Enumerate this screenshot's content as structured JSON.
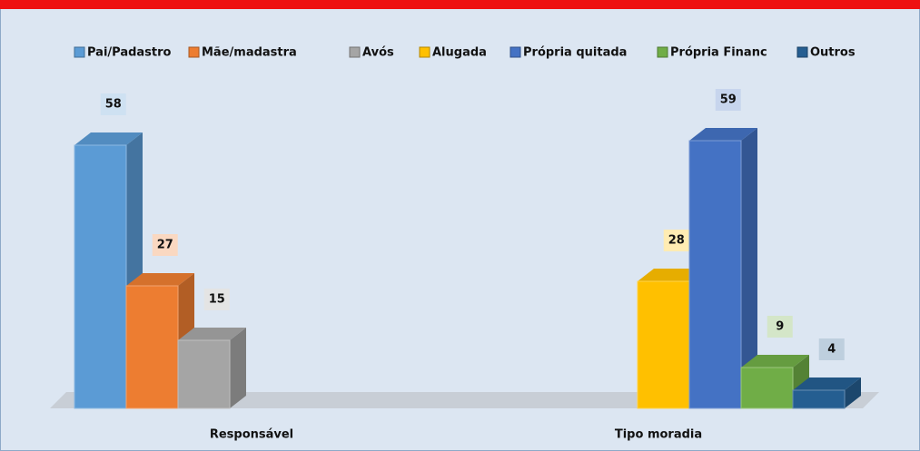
{
  "chart_data": {
    "type": "bar3d",
    "categories": [
      "Responsável",
      "Tipo moradia"
    ],
    "series": [
      {
        "name": "Pai/Padastro",
        "color": "#5b9bd5",
        "values": [
          58,
          null
        ]
      },
      {
        "name": "Mãe/madastra",
        "color": "#ed7d31",
        "values": [
          27,
          null
        ]
      },
      {
        "name": "Avós",
        "color": "#a5a5a5",
        "values": [
          15,
          null
        ]
      },
      {
        "name": "Alugada",
        "color": "#ffc000",
        "values": [
          null,
          28
        ]
      },
      {
        "name": "Própria quitada",
        "color": "#4472c4",
        "values": [
          null,
          59
        ]
      },
      {
        "name": "Própria Financ",
        "color": "#70ad47",
        "values": [
          null,
          9
        ]
      },
      {
        "name": "Outros",
        "color": "#255e91",
        "values": [
          null,
          4
        ]
      }
    ],
    "legend": "top"
  }
}
